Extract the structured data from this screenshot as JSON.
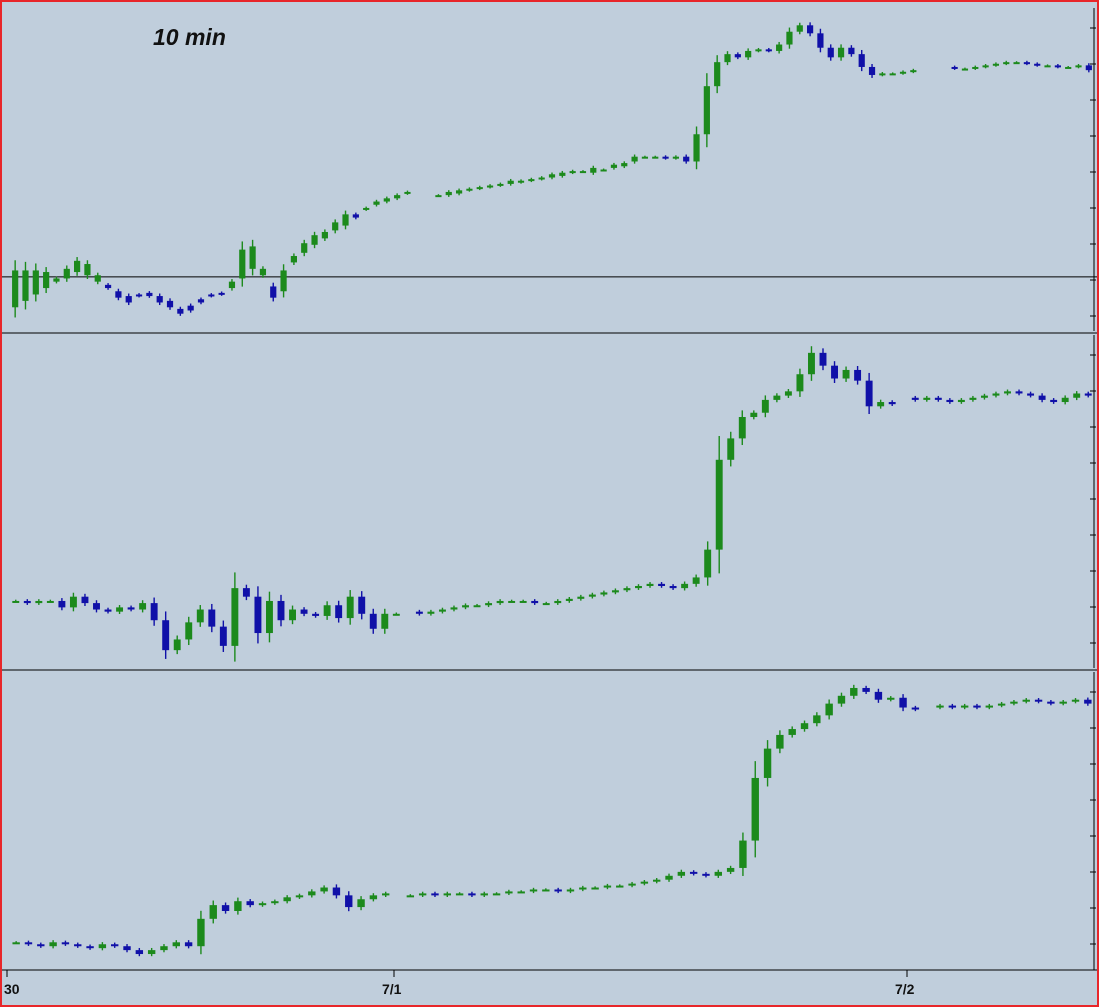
{
  "chart_data": {
    "type": "candlestick",
    "title": "10 min",
    "x_axis": {
      "tick_labels": [
        "30",
        "7/1",
        "7/2"
      ]
    },
    "grid": false,
    "colors": {
      "background": "#c0cedc",
      "border": "#e8262a",
      "up_candle": "#1c8a1c",
      "down_candle": "#1010a8",
      "reference_line": "#000000"
    },
    "panels": [
      {
        "name": "",
        "reference_level": 0.21,
        "series": [
          [
            0.02,
            0.25
          ],
          [
            0.06,
            0.25
          ],
          [
            0.1,
            0.25
          ],
          [
            0.14,
            0.24
          ],
          [
            0.18,
            0.2
          ],
          [
            0.2,
            0.26
          ],
          [
            0.24,
            0.31
          ],
          [
            0.22,
            0.29
          ],
          [
            0.18,
            0.22
          ],
          [
            0.16,
            0.14
          ],
          [
            0.12,
            0.08
          ],
          [
            0.09,
            0.05
          ],
          [
            0.1,
            0.09
          ],
          [
            0.11,
            0.09
          ],
          [
            0.09,
            0.05
          ],
          [
            0.06,
            0.02
          ],
          [
            0.01,
            -0.02
          ],
          [
            0.03,
            0.0
          ],
          [
            0.07,
            0.05
          ],
          [
            0.1,
            0.09
          ],
          [
            0.11,
            0.1
          ],
          [
            0.14,
            0.18
          ],
          [
            0.2,
            0.38
          ],
          [
            0.26,
            0.4
          ],
          [
            0.22,
            0.26
          ],
          [
            0.15,
            0.08
          ],
          [
            0.12,
            0.25
          ],
          [
            0.3,
            0.34
          ],
          [
            0.36,
            0.42
          ],
          [
            0.41,
            0.47
          ],
          [
            0.45,
            0.49
          ],
          [
            0.5,
            0.55
          ],
          [
            0.53,
            0.6
          ],
          [
            0.6,
            0.58
          ],
          [
            0.63,
            0.64
          ],
          [
            0.66,
            0.68
          ],
          [
            0.68,
            0.7
          ],
          [
            0.7,
            0.72
          ],
          [
            0.73,
            0.74
          ],
          [
            null,
            null
          ],
          [
            null,
            null
          ],
          [
            0.72,
            0.72
          ],
          [
            0.72,
            0.74
          ],
          [
            0.73,
            0.75
          ],
          [
            0.75,
            0.76
          ],
          [
            0.76,
            0.77
          ],
          [
            0.77,
            0.78
          ],
          [
            0.78,
            0.79
          ],
          [
            0.79,
            0.81
          ],
          [
            0.8,
            0.81
          ],
          [
            0.81,
            0.82
          ],
          [
            0.82,
            0.83
          ],
          [
            0.83,
            0.85
          ],
          [
            0.84,
            0.86
          ],
          [
            0.86,
            0.87
          ],
          [
            0.87,
            0.87
          ],
          [
            0.86,
            0.89
          ],
          [
            0.88,
            0.88
          ],
          [
            0.89,
            0.91
          ],
          [
            0.9,
            0.92
          ],
          [
            0.93,
            0.96
          ],
          [
            0.96,
            0.96
          ],
          [
            0.96,
            0.96
          ],
          [
            0.96,
            0.95
          ],
          [
            0.95,
            0.96
          ],
          [
            0.96,
            0.93
          ],
          [
            0.93,
            1.1
          ],
          [
            1.1,
            1.4
          ],
          [
            1.4,
            1.55
          ],
          [
            1.55,
            1.6
          ],
          [
            1.6,
            1.58
          ],
          [
            1.58,
            1.62
          ],
          [
            1.62,
            1.63
          ],
          [
            1.63,
            1.62
          ],
          [
            1.62,
            1.66
          ],
          [
            1.66,
            1.74
          ],
          [
            1.74,
            1.78
          ],
          [
            1.78,
            1.73
          ],
          [
            1.73,
            1.64
          ],
          [
            1.64,
            1.58
          ],
          [
            1.58,
            1.64
          ],
          [
            1.64,
            1.6
          ],
          [
            1.6,
            1.52
          ],
          [
            1.52,
            1.47
          ],
          [
            1.47,
            1.48
          ],
          [
            1.48,
            1.48
          ],
          [
            1.48,
            1.49
          ],
          [
            1.49,
            1.5
          ],
          [
            null,
            null
          ],
          [
            null,
            null
          ],
          [
            null,
            null
          ],
          [
            1.52,
            1.51
          ],
          [
            1.51,
            1.51
          ],
          [
            1.51,
            1.52
          ],
          [
            1.52,
            1.53
          ],
          [
            1.53,
            1.54
          ],
          [
            1.54,
            1.55
          ],
          [
            1.55,
            1.55
          ],
          [
            1.55,
            1.54
          ],
          [
            1.54,
            1.53
          ],
          [
            1.53,
            1.53
          ],
          [
            1.53,
            1.52
          ],
          [
            1.52,
            1.52
          ],
          [
            1.52,
            1.53
          ],
          [
            1.53,
            1.5
          ]
        ]
      },
      {
        "name": "",
        "series": [
          [
            0.34,
            0.34
          ],
          [
            0.34,
            0.33
          ],
          [
            0.33,
            0.34
          ],
          [
            0.34,
            0.34
          ],
          [
            0.34,
            0.31
          ],
          [
            0.31,
            0.36
          ],
          [
            0.36,
            0.33
          ],
          [
            0.33,
            0.3
          ],
          [
            0.3,
            0.29
          ],
          [
            0.29,
            0.31
          ],
          [
            0.31,
            0.3
          ],
          [
            0.3,
            0.33
          ],
          [
            0.33,
            0.25
          ],
          [
            0.25,
            0.11
          ],
          [
            0.11,
            0.16
          ],
          [
            0.16,
            0.24
          ],
          [
            0.24,
            0.3
          ],
          [
            0.3,
            0.22
          ],
          [
            0.22,
            0.13
          ],
          [
            0.13,
            0.4
          ],
          [
            0.4,
            0.36
          ],
          [
            0.36,
            0.19
          ],
          [
            0.19,
            0.34
          ],
          [
            0.34,
            0.25
          ],
          [
            0.25,
            0.3
          ],
          [
            0.3,
            0.28
          ],
          [
            0.28,
            0.27
          ],
          [
            0.27,
            0.32
          ],
          [
            0.32,
            0.26
          ],
          [
            0.26,
            0.36
          ],
          [
            0.36,
            0.28
          ],
          [
            0.28,
            0.21
          ],
          [
            0.21,
            0.28
          ],
          [
            0.28,
            0.28
          ],
          [
            null,
            null
          ],
          [
            0.29,
            0.28
          ],
          [
            0.28,
            0.29
          ],
          [
            0.29,
            0.3
          ],
          [
            0.3,
            0.31
          ],
          [
            0.31,
            0.32
          ],
          [
            0.32,
            0.32
          ],
          [
            0.32,
            0.33
          ],
          [
            0.33,
            0.34
          ],
          [
            0.34,
            0.34
          ],
          [
            0.34,
            0.34
          ],
          [
            0.34,
            0.33
          ],
          [
            0.33,
            0.33
          ],
          [
            0.33,
            0.34
          ],
          [
            0.34,
            0.35
          ],
          [
            0.35,
            0.36
          ],
          [
            0.36,
            0.37
          ],
          [
            0.37,
            0.38
          ],
          [
            0.38,
            0.39
          ],
          [
            0.39,
            0.4
          ],
          [
            0.4,
            0.41
          ],
          [
            0.41,
            0.42
          ],
          [
            0.42,
            0.41
          ],
          [
            0.41,
            0.4
          ],
          [
            0.4,
            0.42
          ],
          [
            0.42,
            0.45
          ],
          [
            0.45,
            0.58
          ],
          [
            0.58,
            1.0
          ],
          [
            1.0,
            1.1
          ],
          [
            1.1,
            1.2
          ],
          [
            1.2,
            1.22
          ],
          [
            1.22,
            1.28
          ],
          [
            1.28,
            1.3
          ],
          [
            1.3,
            1.32
          ],
          [
            1.32,
            1.4
          ],
          [
            1.4,
            1.5
          ],
          [
            1.5,
            1.44
          ],
          [
            1.44,
            1.38
          ],
          [
            1.38,
            1.42
          ],
          [
            1.42,
            1.37
          ],
          [
            1.37,
            1.25
          ],
          [
            1.25,
            1.27
          ],
          [
            1.27,
            1.26
          ],
          [
            null,
            null
          ],
          [
            1.29,
            1.28
          ],
          [
            1.28,
            1.29
          ],
          [
            1.29,
            1.28
          ],
          [
            1.28,
            1.27
          ],
          [
            1.27,
            1.28
          ],
          [
            1.28,
            1.29
          ],
          [
            1.29,
            1.3
          ],
          [
            1.3,
            1.31
          ],
          [
            1.31,
            1.32
          ],
          [
            1.32,
            1.31
          ],
          [
            1.31,
            1.3
          ],
          [
            1.3,
            1.28
          ],
          [
            1.28,
            1.27
          ],
          [
            1.27,
            1.29
          ],
          [
            1.29,
            1.31
          ],
          [
            1.31,
            1.3
          ]
        ]
      },
      {
        "name": "",
        "series": [
          [
            0.06,
            0.06
          ],
          [
            0.06,
            0.05
          ],
          [
            0.05,
            0.04
          ],
          [
            0.04,
            0.06
          ],
          [
            0.06,
            0.05
          ],
          [
            0.05,
            0.04
          ],
          [
            0.04,
            0.03
          ],
          [
            0.03,
            0.05
          ],
          [
            0.05,
            0.04
          ],
          [
            0.04,
            0.02
          ],
          [
            0.02,
            0.0
          ],
          [
            0.0,
            0.02
          ],
          [
            0.02,
            0.04
          ],
          [
            0.04,
            0.06
          ],
          [
            0.06,
            0.04
          ],
          [
            0.04,
            0.18
          ],
          [
            0.18,
            0.25
          ],
          [
            0.25,
            0.22
          ],
          [
            0.22,
            0.27
          ],
          [
            0.27,
            0.25
          ],
          [
            0.25,
            0.26
          ],
          [
            0.26,
            0.27
          ],
          [
            0.27,
            0.29
          ],
          [
            0.29,
            0.3
          ],
          [
            0.3,
            0.32
          ],
          [
            0.32,
            0.34
          ],
          [
            0.34,
            0.3
          ],
          [
            0.3,
            0.24
          ],
          [
            0.24,
            0.28
          ],
          [
            0.28,
            0.3
          ],
          [
            0.3,
            0.31
          ],
          [
            null,
            null
          ],
          [
            0.3,
            0.3
          ],
          [
            0.3,
            0.31
          ],
          [
            0.31,
            0.3
          ],
          [
            0.3,
            0.31
          ],
          [
            0.31,
            0.31
          ],
          [
            0.31,
            0.3
          ],
          [
            0.3,
            0.31
          ],
          [
            0.31,
            0.31
          ],
          [
            0.31,
            0.32
          ],
          [
            0.32,
            0.32
          ],
          [
            0.32,
            0.33
          ],
          [
            0.33,
            0.33
          ],
          [
            0.33,
            0.32
          ],
          [
            0.32,
            0.33
          ],
          [
            0.33,
            0.34
          ],
          [
            0.34,
            0.34
          ],
          [
            0.34,
            0.35
          ],
          [
            0.35,
            0.35
          ],
          [
            0.35,
            0.36
          ],
          [
            0.36,
            0.37
          ],
          [
            0.37,
            0.38
          ],
          [
            0.38,
            0.4
          ],
          [
            0.4,
            0.42
          ],
          [
            0.42,
            0.41
          ],
          [
            0.41,
            0.4
          ],
          [
            0.4,
            0.42
          ],
          [
            0.42,
            0.44
          ],
          [
            0.44,
            0.58
          ],
          [
            0.58,
            0.9
          ],
          [
            0.9,
            1.05
          ],
          [
            1.05,
            1.12
          ],
          [
            1.12,
            1.15
          ],
          [
            1.15,
            1.18
          ],
          [
            1.18,
            1.22
          ],
          [
            1.22,
            1.28
          ],
          [
            1.28,
            1.32
          ],
          [
            1.32,
            1.36
          ],
          [
            1.36,
            1.34
          ],
          [
            1.34,
            1.3
          ],
          [
            1.3,
            1.31
          ],
          [
            1.31,
            1.26
          ],
          [
            1.26,
            1.25
          ],
          [
            null,
            null
          ],
          [
            1.26,
            1.27
          ],
          [
            1.27,
            1.26
          ],
          [
            1.26,
            1.27
          ],
          [
            1.27,
            1.26
          ],
          [
            1.26,
            1.27
          ],
          [
            1.27,
            1.28
          ],
          [
            1.28,
            1.29
          ],
          [
            1.29,
            1.3
          ],
          [
            1.3,
            1.29
          ],
          [
            1.29,
            1.28
          ],
          [
            1.28,
            1.29
          ],
          [
            1.29,
            1.3
          ],
          [
            1.3,
            1.28
          ]
        ]
      }
    ]
  }
}
